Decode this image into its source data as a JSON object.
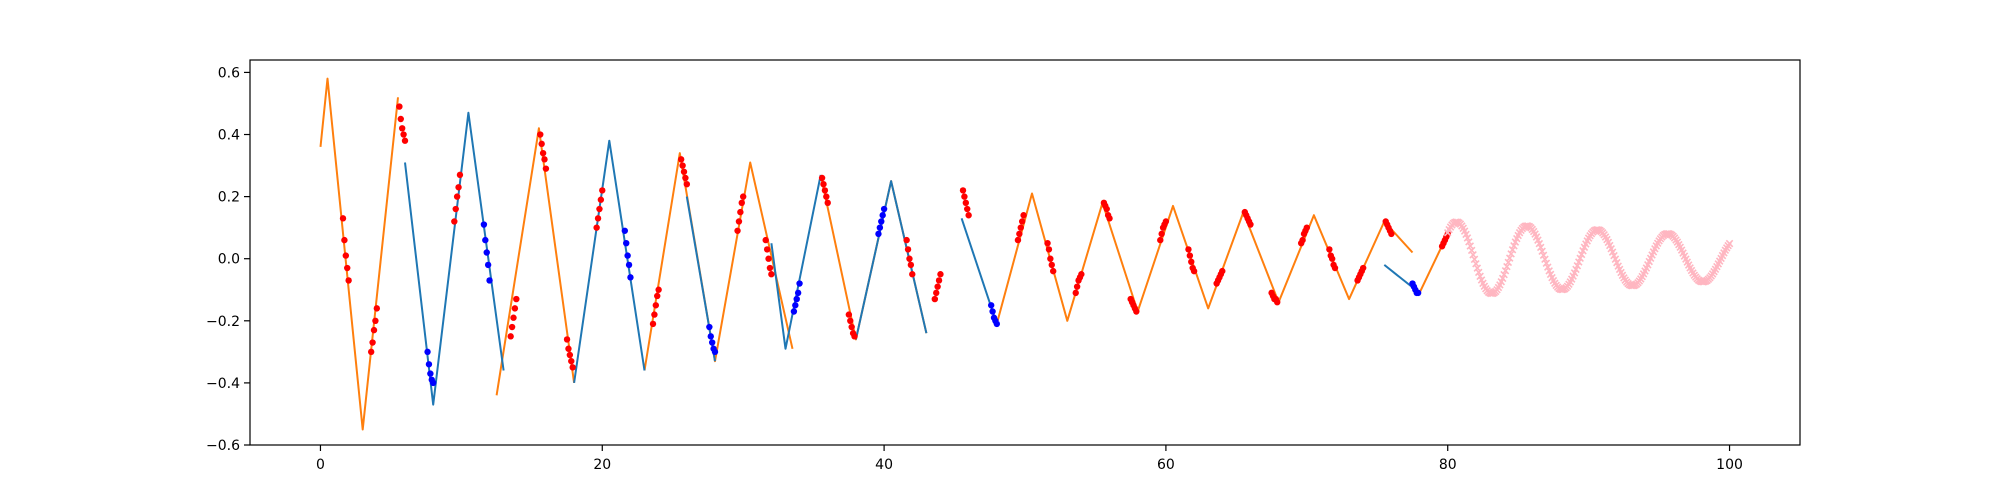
{
  "chart_data": {
    "type": "line",
    "title": "",
    "xlabel": "",
    "ylabel": "",
    "xlim": [
      -5,
      105
    ],
    "ylim": [
      -0.6,
      0.64
    ],
    "xticks": [
      0,
      20,
      40,
      60,
      80,
      100
    ],
    "yticks": [
      -0.6,
      -0.4,
      -0.2,
      0.0,
      0.2,
      0.4,
      0.6
    ],
    "xtick_labels": [
      "0",
      "20",
      "40",
      "60",
      "80",
      "100"
    ],
    "ytick_labels": [
      "−0.6",
      "−0.4",
      "−0.2",
      "0.0",
      "0.2",
      "0.4",
      "0.6"
    ],
    "grid": false,
    "legend": null,
    "signal": {
      "description_function": "decaying triangle wave",
      "amplitude_start": 0.56,
      "amplitude_end": 0.1,
      "period": 5,
      "x_start": 0,
      "x_end": 80
    },
    "series": [
      {
        "style": "line",
        "color": "#ff7f0e",
        "segments": [
          [
            [
              0,
              0.36
            ],
            [
              0.5,
              0.58
            ],
            [
              3.0,
              -0.55
            ],
            [
              5.5,
              0.52
            ]
          ],
          [
            [
              12.5,
              -0.44
            ],
            [
              15.5,
              0.42
            ],
            [
              18.0,
              -0.4
            ]
          ],
          [
            [
              23.0,
              -0.36
            ],
            [
              25.5,
              0.34
            ],
            [
              28.0,
              -0.33
            ],
            [
              30.5,
              0.31
            ],
            [
              33.5,
              -0.29
            ]
          ],
          [
            [
              35.5,
              0.27
            ],
            [
              38.0,
              -0.26
            ],
            [
              40.5,
              0.25
            ],
            [
              43.0,
              -0.24
            ]
          ],
          [
            [
              48.0,
              -0.21
            ],
            [
              50.5,
              0.21
            ],
            [
              53.0,
              -0.2
            ],
            [
              55.5,
              0.18
            ],
            [
              58.0,
              -0.17
            ],
            [
              60.5,
              0.17
            ],
            [
              63.0,
              -0.16
            ],
            [
              65.5,
              0.15
            ],
            [
              68.0,
              -0.14
            ],
            [
              70.5,
              0.14
            ],
            [
              73.0,
              -0.13
            ],
            [
              75.5,
              0.12
            ],
            [
              77.5,
              0.02
            ]
          ],
          [
            [
              78.0,
              -0.11
            ],
            [
              80.0,
              0.08
            ]
          ]
        ]
      },
      {
        "style": "line",
        "color": "#1f77b4",
        "segments": [
          [
            [
              6.0,
              0.31
            ],
            [
              8.0,
              -0.47
            ],
            [
              10.5,
              0.47
            ],
            [
              13.0,
              -0.36
            ]
          ],
          [
            [
              18.0,
              -0.4
            ],
            [
              20.5,
              0.38
            ],
            [
              23.0,
              -0.36
            ]
          ],
          [
            [
              26.0,
              0.2
            ],
            [
              28.0,
              -0.33
            ]
          ],
          [
            [
              32.0,
              0.05
            ],
            [
              33.0,
              -0.29
            ],
            [
              35.5,
              0.27
            ]
          ],
          [
            [
              38.0,
              -0.26
            ],
            [
              40.5,
              0.25
            ],
            [
              43.0,
              -0.24
            ]
          ],
          [
            [
              45.5,
              0.13
            ],
            [
              48.0,
              -0.21
            ]
          ],
          [
            [
              75.5,
              -0.02
            ],
            [
              78.0,
              -0.11
            ]
          ]
        ]
      },
      {
        "style": "markers",
        "color": "#ff0000",
        "points": [
          [
            1.6,
            0.13
          ],
          [
            1.7,
            0.06
          ],
          [
            1.8,
            0.01
          ],
          [
            1.9,
            -0.03
          ],
          [
            2.0,
            -0.07
          ],
          [
            3.6,
            -0.3
          ],
          [
            3.7,
            -0.27
          ],
          [
            3.8,
            -0.23
          ],
          [
            3.9,
            -0.2
          ],
          [
            4.0,
            -0.16
          ],
          [
            5.6,
            0.49
          ],
          [
            5.7,
            0.45
          ],
          [
            5.8,
            0.42
          ],
          [
            5.9,
            0.4
          ],
          [
            6.0,
            0.38
          ],
          [
            9.5,
            0.12
          ],
          [
            9.6,
            0.16
          ],
          [
            9.7,
            0.2
          ],
          [
            9.8,
            0.23
          ],
          [
            9.9,
            0.27
          ],
          [
            13.5,
            -0.25
          ],
          [
            13.6,
            -0.22
          ],
          [
            13.7,
            -0.19
          ],
          [
            13.8,
            -0.16
          ],
          [
            13.9,
            -0.13
          ],
          [
            15.6,
            0.4
          ],
          [
            15.7,
            0.37
          ],
          [
            15.8,
            0.34
          ],
          [
            15.9,
            0.32
          ],
          [
            16.0,
            0.29
          ],
          [
            17.5,
            -0.26
          ],
          [
            17.6,
            -0.29
          ],
          [
            17.7,
            -0.31
          ],
          [
            17.8,
            -0.33
          ],
          [
            17.9,
            -0.35
          ],
          [
            19.6,
            0.1
          ],
          [
            19.7,
            0.13
          ],
          [
            19.8,
            0.16
          ],
          [
            19.9,
            0.19
          ],
          [
            20.0,
            0.22
          ],
          [
            23.6,
            -0.21
          ],
          [
            23.7,
            -0.18
          ],
          [
            23.8,
            -0.15
          ],
          [
            23.9,
            -0.12
          ],
          [
            24.0,
            -0.1
          ],
          [
            25.6,
            0.32
          ],
          [
            25.7,
            0.3
          ],
          [
            25.8,
            0.28
          ],
          [
            25.9,
            0.26
          ],
          [
            26.0,
            0.24
          ],
          [
            29.6,
            0.09
          ],
          [
            29.7,
            0.12
          ],
          [
            29.8,
            0.15
          ],
          [
            29.9,
            0.18
          ],
          [
            30.0,
            0.2
          ],
          [
            31.6,
            0.06
          ],
          [
            31.7,
            0.03
          ],
          [
            31.8,
            0.0
          ],
          [
            31.9,
            -0.03
          ],
          [
            32.0,
            -0.05
          ],
          [
            35.6,
            0.26
          ],
          [
            35.7,
            0.24
          ],
          [
            35.8,
            0.22
          ],
          [
            35.9,
            0.2
          ],
          [
            36.0,
            0.18
          ],
          [
            37.5,
            -0.18
          ],
          [
            37.6,
            -0.2
          ],
          [
            37.7,
            -0.22
          ],
          [
            37.8,
            -0.24
          ],
          [
            37.9,
            -0.25
          ],
          [
            41.6,
            0.06
          ],
          [
            41.7,
            0.03
          ],
          [
            41.8,
            0.0
          ],
          [
            41.9,
            -0.02
          ],
          [
            42.0,
            -0.05
          ],
          [
            43.6,
            -0.13
          ],
          [
            43.7,
            -0.11
          ],
          [
            43.8,
            -0.09
          ],
          [
            43.9,
            -0.07
          ],
          [
            44.0,
            -0.05
          ],
          [
            45.6,
            0.22
          ],
          [
            45.7,
            0.2
          ],
          [
            45.8,
            0.18
          ],
          [
            45.9,
            0.16
          ],
          [
            46.0,
            0.14
          ],
          [
            49.5,
            0.06
          ],
          [
            49.6,
            0.08
          ],
          [
            49.7,
            0.1
          ],
          [
            49.8,
            0.12
          ],
          [
            49.9,
            0.14
          ],
          [
            51.6,
            0.05
          ],
          [
            51.7,
            0.03
          ],
          [
            51.8,
            0.0
          ],
          [
            51.9,
            -0.02
          ],
          [
            52.0,
            -0.04
          ],
          [
            53.6,
            -0.11
          ],
          [
            53.7,
            -0.09
          ],
          [
            53.8,
            -0.07
          ],
          [
            53.9,
            -0.06
          ],
          [
            54.0,
            -0.05
          ],
          [
            55.6,
            0.18
          ],
          [
            55.7,
            0.17
          ],
          [
            55.8,
            0.16
          ],
          [
            55.9,
            0.14
          ],
          [
            56.0,
            0.13
          ],
          [
            57.5,
            -0.13
          ],
          [
            57.6,
            -0.14
          ],
          [
            57.7,
            -0.15
          ],
          [
            57.8,
            -0.16
          ],
          [
            57.9,
            -0.17
          ],
          [
            59.6,
            0.06
          ],
          [
            59.7,
            0.08
          ],
          [
            59.8,
            0.1
          ],
          [
            59.9,
            0.11
          ],
          [
            60.0,
            0.12
          ],
          [
            61.6,
            0.03
          ],
          [
            61.7,
            0.01
          ],
          [
            61.8,
            -0.01
          ],
          [
            61.9,
            -0.03
          ],
          [
            62.0,
            -0.04
          ],
          [
            63.6,
            -0.08
          ],
          [
            63.7,
            -0.07
          ],
          [
            63.8,
            -0.06
          ],
          [
            63.9,
            -0.05
          ],
          [
            64.0,
            -0.04
          ],
          [
            65.6,
            0.15
          ],
          [
            65.7,
            0.14
          ],
          [
            65.8,
            0.13
          ],
          [
            65.9,
            0.12
          ],
          [
            66.0,
            0.11
          ],
          [
            67.5,
            -0.11
          ],
          [
            67.6,
            -0.12
          ],
          [
            67.7,
            -0.13
          ],
          [
            67.8,
            -0.13
          ],
          [
            67.9,
            -0.14
          ],
          [
            69.6,
            0.05
          ],
          [
            69.7,
            0.06
          ],
          [
            69.8,
            0.08
          ],
          [
            69.9,
            0.09
          ],
          [
            70.0,
            0.1
          ],
          [
            71.6,
            0.03
          ],
          [
            71.7,
            0.01
          ],
          [
            71.8,
            0.0
          ],
          [
            71.9,
            -0.02
          ],
          [
            72.0,
            -0.03
          ],
          [
            73.6,
            -0.07
          ],
          [
            73.7,
            -0.06
          ],
          [
            73.8,
            -0.05
          ],
          [
            73.9,
            -0.04
          ],
          [
            74.0,
            -0.03
          ],
          [
            75.6,
            0.12
          ],
          [
            75.7,
            0.11
          ],
          [
            75.8,
            0.1
          ],
          [
            75.9,
            0.09
          ],
          [
            76.0,
            0.08
          ],
          [
            79.6,
            0.04
          ],
          [
            79.7,
            0.05
          ],
          [
            79.8,
            0.06
          ],
          [
            79.9,
            0.07
          ],
          [
            80.0,
            0.08
          ]
        ]
      },
      {
        "style": "markers",
        "color": "#0000ff",
        "points": [
          [
            7.6,
            -0.3
          ],
          [
            7.7,
            -0.34
          ],
          [
            7.8,
            -0.37
          ],
          [
            7.9,
            -0.39
          ],
          [
            8.0,
            -0.4
          ],
          [
            11.6,
            0.11
          ],
          [
            11.7,
            0.06
          ],
          [
            11.8,
            0.02
          ],
          [
            11.9,
            -0.02
          ],
          [
            12.0,
            -0.07
          ],
          [
            21.6,
            0.09
          ],
          [
            21.7,
            0.05
          ],
          [
            21.8,
            0.01
          ],
          [
            21.9,
            -0.02
          ],
          [
            22.0,
            -0.06
          ],
          [
            27.6,
            -0.22
          ],
          [
            27.7,
            -0.25
          ],
          [
            27.8,
            -0.27
          ],
          [
            27.9,
            -0.29
          ],
          [
            28.0,
            -0.3
          ],
          [
            33.6,
            -0.17
          ],
          [
            33.7,
            -0.15
          ],
          [
            33.8,
            -0.13
          ],
          [
            33.9,
            -0.11
          ],
          [
            34.0,
            -0.08
          ],
          [
            39.6,
            0.08
          ],
          [
            39.7,
            0.1
          ],
          [
            39.8,
            0.12
          ],
          [
            39.9,
            0.14
          ],
          [
            40.0,
            0.16
          ],
          [
            47.6,
            -0.15
          ],
          [
            47.7,
            -0.17
          ],
          [
            47.8,
            -0.19
          ],
          [
            47.9,
            -0.2
          ],
          [
            48.0,
            -0.21
          ],
          [
            77.5,
            -0.08
          ],
          [
            77.6,
            -0.09
          ],
          [
            77.7,
            -0.1
          ],
          [
            77.8,
            -0.11
          ],
          [
            77.9,
            -0.11
          ]
        ]
      },
      {
        "style": "x-markers",
        "color": "#ffb6c1",
        "x_start": 80,
        "x_end": 100,
        "step": 0.1,
        "description_function": "damped sine",
        "amplitude_start": 0.12,
        "amplitude_end": 0.07,
        "period": 5
      }
    ]
  }
}
